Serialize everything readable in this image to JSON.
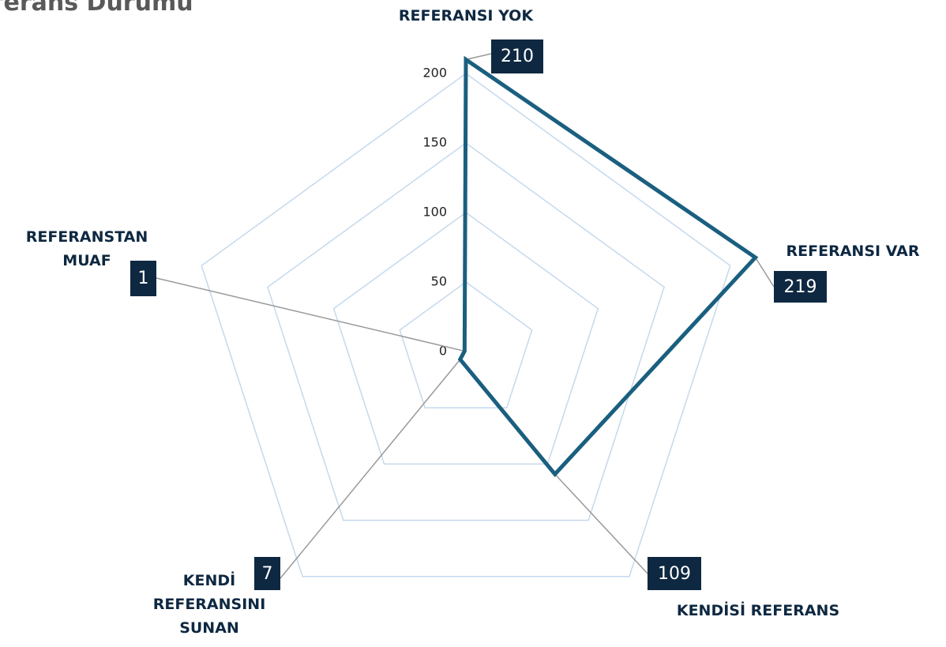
{
  "chart_data": {
    "type": "radar",
    "title": "Referans Durumu",
    "categories": [
      "REFERANSI YOK",
      "REFERANSI VAR",
      "KENDİSİ REFERANS",
      "KENDİ REFERANSINI SUNAN",
      "REFERANSTAN MUAF"
    ],
    "values": [
      210,
      219,
      109,
      7,
      1
    ],
    "color": "#1a5f7f",
    "rlim": [
      0,
      200
    ],
    "rticks": [
      0,
      50,
      100,
      150,
      200
    ],
    "grid": true
  }
}
